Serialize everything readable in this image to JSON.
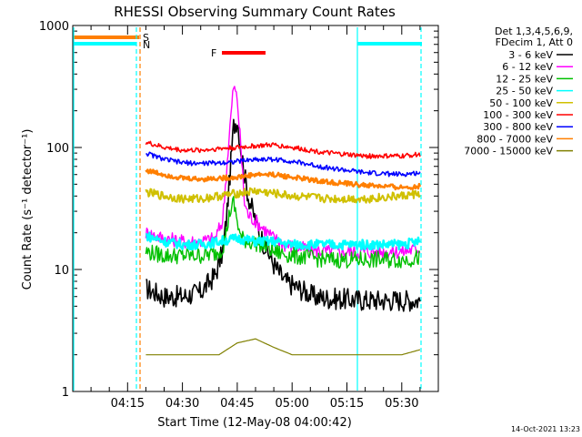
{
  "chart_data": {
    "type": "line",
    "title": "RHESSI Observing Summary Count Rates",
    "xlabel": "Start Time (12-May-08 04:00:42)",
    "ylabel": "Count Rate (s⁻¹ detector⁻¹)",
    "y_scale": "log",
    "ylim": [
      1,
      1000
    ],
    "y_ticks": [
      {
        "value": 1,
        "label": "1"
      },
      {
        "value": 10,
        "label": "10"
      },
      {
        "value": 100,
        "label": "100"
      },
      {
        "value": 1000,
        "label": "1000"
      }
    ],
    "xlim_minutes": [
      0,
      100
    ],
    "x_ticks": [
      {
        "minute": 15,
        "label": "04:15"
      },
      {
        "minute": 30,
        "label": "04:30"
      },
      {
        "minute": 45,
        "label": "04:45"
      },
      {
        "minute": 60,
        "label": "05:00"
      },
      {
        "minute": 75,
        "label": "05:15"
      },
      {
        "minute": 90,
        "label": "05:30"
      }
    ],
    "legend": {
      "header": [
        "Det 1,3,4,5,6,9,",
        "FDecim 1, Att 0"
      ],
      "position": "right"
    },
    "series": [
      {
        "name": "3 - 6 keV",
        "color": "#000000",
        "points": [
          [
            20,
            7
          ],
          [
            25,
            6
          ],
          [
            30,
            6
          ],
          [
            35,
            6.5
          ],
          [
            39,
            9
          ],
          [
            41,
            14
          ],
          [
            42,
            25
          ],
          [
            43,
            60
          ],
          [
            44,
            150
          ],
          [
            45,
            170
          ],
          [
            46,
            100
          ],
          [
            47,
            60
          ],
          [
            48,
            40
          ],
          [
            50,
            25
          ],
          [
            52,
            17
          ],
          [
            55,
            11
          ],
          [
            58,
            8
          ],
          [
            62,
            7
          ],
          [
            66,
            6
          ],
          [
            70,
            5.8
          ],
          [
            80,
            5.6
          ],
          [
            90,
            5.6
          ],
          [
            95,
            5.6
          ]
        ]
      },
      {
        "name": "6 - 12 keV",
        "color": "#ff00ff",
        "points": [
          [
            20,
            20
          ],
          [
            25,
            18
          ],
          [
            30,
            17
          ],
          [
            35,
            17
          ],
          [
            39,
            18
          ],
          [
            41,
            25
          ],
          [
            42,
            60
          ],
          [
            43,
            150
          ],
          [
            44,
            320
          ],
          [
            45,
            250
          ],
          [
            46,
            100
          ],
          [
            47,
            35
          ],
          [
            48,
            28
          ],
          [
            50,
            25
          ],
          [
            52,
            22
          ],
          [
            55,
            18
          ],
          [
            58,
            16
          ],
          [
            62,
            15
          ],
          [
            70,
            14
          ],
          [
            80,
            14
          ],
          [
            90,
            14
          ],
          [
            95,
            15
          ]
        ]
      },
      {
        "name": "12 - 25 keV",
        "color": "#00c000",
        "points": [
          [
            20,
            14
          ],
          [
            25,
            13
          ],
          [
            30,
            13
          ],
          [
            35,
            13
          ],
          [
            39,
            13.5
          ],
          [
            41,
            15
          ],
          [
            42,
            20
          ],
          [
            43,
            30
          ],
          [
            44,
            35
          ],
          [
            45,
            25
          ],
          [
            46,
            18
          ],
          [
            48,
            17
          ],
          [
            52,
            16
          ],
          [
            55,
            14
          ],
          [
            60,
            13
          ],
          [
            70,
            12
          ],
          [
            80,
            12
          ],
          [
            90,
            12
          ],
          [
            95,
            12.5
          ]
        ]
      },
      {
        "name": "25 - 50 keV",
        "color": "#00ffff",
        "points": [
          [
            20,
            19
          ],
          [
            25,
            17
          ],
          [
            30,
            16
          ],
          [
            35,
            16
          ],
          [
            40,
            17
          ],
          [
            45,
            18
          ],
          [
            50,
            17
          ],
          [
            55,
            17
          ],
          [
            60,
            16
          ],
          [
            70,
            16
          ],
          [
            80,
            16
          ],
          [
            90,
            16
          ],
          [
            95,
            17
          ]
        ]
      },
      {
        "name": "50 - 100 keV",
        "color": "#d0c000",
        "points": [
          [
            20,
            43
          ],
          [
            25,
            40
          ],
          [
            30,
            38
          ],
          [
            35,
            38
          ],
          [
            40,
            40
          ],
          [
            45,
            42
          ],
          [
            50,
            44
          ],
          [
            55,
            42
          ],
          [
            60,
            40
          ],
          [
            70,
            38
          ],
          [
            80,
            38
          ],
          [
            90,
            40
          ],
          [
            95,
            42
          ]
        ]
      },
      {
        "name": "100 - 300 keV",
        "color": "#ff0000",
        "points": [
          [
            20,
            110
          ],
          [
            25,
            100
          ],
          [
            30,
            95
          ],
          [
            35,
            95
          ],
          [
            40,
            98
          ],
          [
            45,
            100
          ],
          [
            50,
            103
          ],
          [
            55,
            105
          ],
          [
            60,
            100
          ],
          [
            70,
            90
          ],
          [
            80,
            85
          ],
          [
            90,
            85
          ],
          [
            95,
            88
          ]
        ]
      },
      {
        "name": "300 - 800 keV",
        "color": "#0000ff",
        "points": [
          [
            20,
            90
          ],
          [
            25,
            80
          ],
          [
            30,
            75
          ],
          [
            35,
            74
          ],
          [
            40,
            75
          ],
          [
            45,
            77
          ],
          [
            50,
            80
          ],
          [
            55,
            80
          ],
          [
            60,
            77
          ],
          [
            70,
            68
          ],
          [
            80,
            62
          ],
          [
            90,
            60
          ],
          [
            95,
            62
          ]
        ]
      },
      {
        "name": "800 - 7000 keV",
        "color": "#ff7f00",
        "points": [
          [
            20,
            65
          ],
          [
            25,
            60
          ],
          [
            30,
            56
          ],
          [
            35,
            55
          ],
          [
            40,
            56
          ],
          [
            45,
            57
          ],
          [
            50,
            60
          ],
          [
            55,
            60
          ],
          [
            60,
            57
          ],
          [
            70,
            52
          ],
          [
            80,
            49
          ],
          [
            90,
            47
          ],
          [
            95,
            48
          ]
        ]
      },
      {
        "name": "7000 - 15000 keV",
        "color": "#808000",
        "points": [
          [
            20,
            2
          ],
          [
            25,
            2
          ],
          [
            30,
            2
          ],
          [
            35,
            2
          ],
          [
            40,
            2
          ],
          [
            45,
            2.5
          ],
          [
            50,
            2.7
          ],
          [
            55,
            2.3
          ],
          [
            60,
            2
          ],
          [
            70,
            2
          ],
          [
            80,
            2
          ],
          [
            90,
            2
          ],
          [
            95,
            2.2
          ]
        ]
      }
    ],
    "annotations": [
      {
        "label": "F",
        "color": "#ff0000"
      },
      {
        "label": "S",
        "color": "#ff7f00"
      },
      {
        "label": "N",
        "color": "#00ffff"
      }
    ],
    "footer": "14-Oct-2021 13:23"
  }
}
